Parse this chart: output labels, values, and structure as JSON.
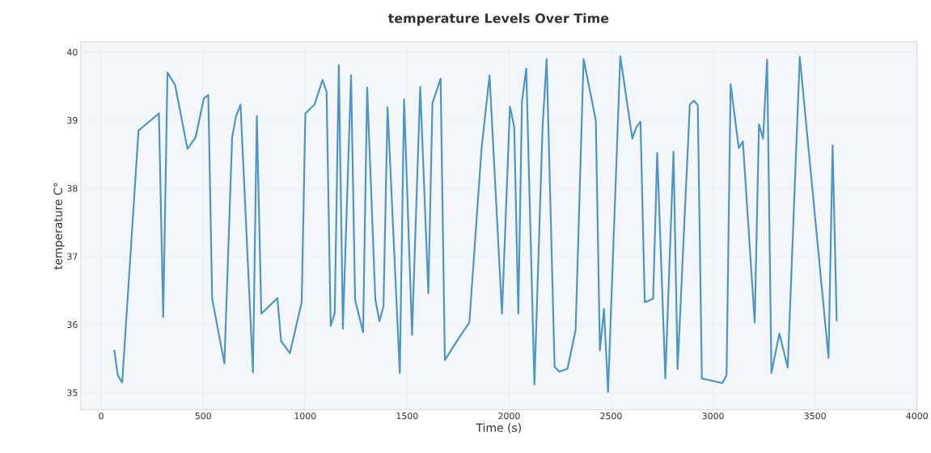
{
  "chart_data": {
    "type": "line",
    "title": "temperature Levels Over Time",
    "xlabel": "Time (s)",
    "ylabel": "temperature C°",
    "x": [
      64,
      81,
      103,
      183,
      283,
      304,
      325,
      362,
      423,
      463,
      503,
      525,
      544,
      604,
      642,
      661,
      683,
      744,
      763,
      785,
      864,
      882,
      925,
      983,
      1001,
      1046,
      1085,
      1105,
      1125,
      1145,
      1165,
      1185,
      1225,
      1245,
      1284,
      1304,
      1344,
      1364,
      1384,
      1404,
      1464,
      1485,
      1524,
      1564,
      1604,
      1624,
      1664,
      1685,
      1742,
      1805,
      1865,
      1904,
      1965,
      2004,
      2025,
      2045,
      2063,
      2084,
      2124,
      2164,
      2184,
      2223,
      2246,
      2286,
      2326,
      2365,
      2425,
      2445,
      2465,
      2485,
      2545,
      2604,
      2624,
      2644,
      2665,
      2706,
      2726,
      2766,
      2806,
      2826,
      2886,
      2906,
      2925,
      2945,
      3046,
      3066,
      3086,
      3126,
      3146,
      3204,
      3225,
      3245,
      3265,
      3286,
      3325,
      3366,
      3425,
      3566,
      3586,
      3606
    ],
    "values": [
      35.63,
      35.26,
      35.15,
      38.85,
      39.1,
      36.11,
      39.7,
      39.52,
      38.58,
      38.75,
      39.32,
      39.37,
      36.38,
      35.43,
      38.75,
      39.06,
      39.23,
      35.3,
      39.06,
      36.16,
      36.39,
      35.76,
      35.58,
      36.33,
      39.1,
      39.23,
      39.59,
      39.42,
      35.98,
      36.17,
      39.81,
      35.94,
      39.66,
      36.36,
      35.89,
      39.48,
      36.37,
      36.05,
      36.27,
      39.19,
      35.29,
      39.31,
      35.85,
      39.49,
      36.46,
      39.25,
      39.61,
      35.48,
      35.75,
      36.03,
      38.59,
      39.66,
      36.16,
      39.2,
      38.9,
      36.16,
      39.28,
      39.76,
      35.12,
      38.9,
      39.9,
      35.38,
      35.31,
      35.35,
      35.92,
      39.9,
      39.0,
      35.62,
      36.23,
      35.01,
      39.94,
      38.73,
      38.9,
      38.98,
      36.33,
      36.38,
      38.52,
      35.21,
      38.54,
      35.35,
      39.23,
      39.29,
      39.22,
      35.21,
      35.14,
      35.26,
      39.53,
      38.59,
      38.69,
      36.03,
      38.94,
      38.73,
      39.89,
      35.29,
      35.87,
      35.37,
      39.93,
      35.51,
      38.63,
      36.05
    ],
    "color": "#4f96c4",
    "line_style": "solid",
    "grid": true,
    "xlim": [
      -100,
      4000
    ],
    "xticks": [
      0,
      500,
      1000,
      1500,
      2000,
      2500,
      3000,
      3500,
      4000
    ],
    "ylim": [
      34.75,
      40.15
    ],
    "yticks": [
      35,
      36,
      37,
      38,
      39,
      40
    ]
  }
}
